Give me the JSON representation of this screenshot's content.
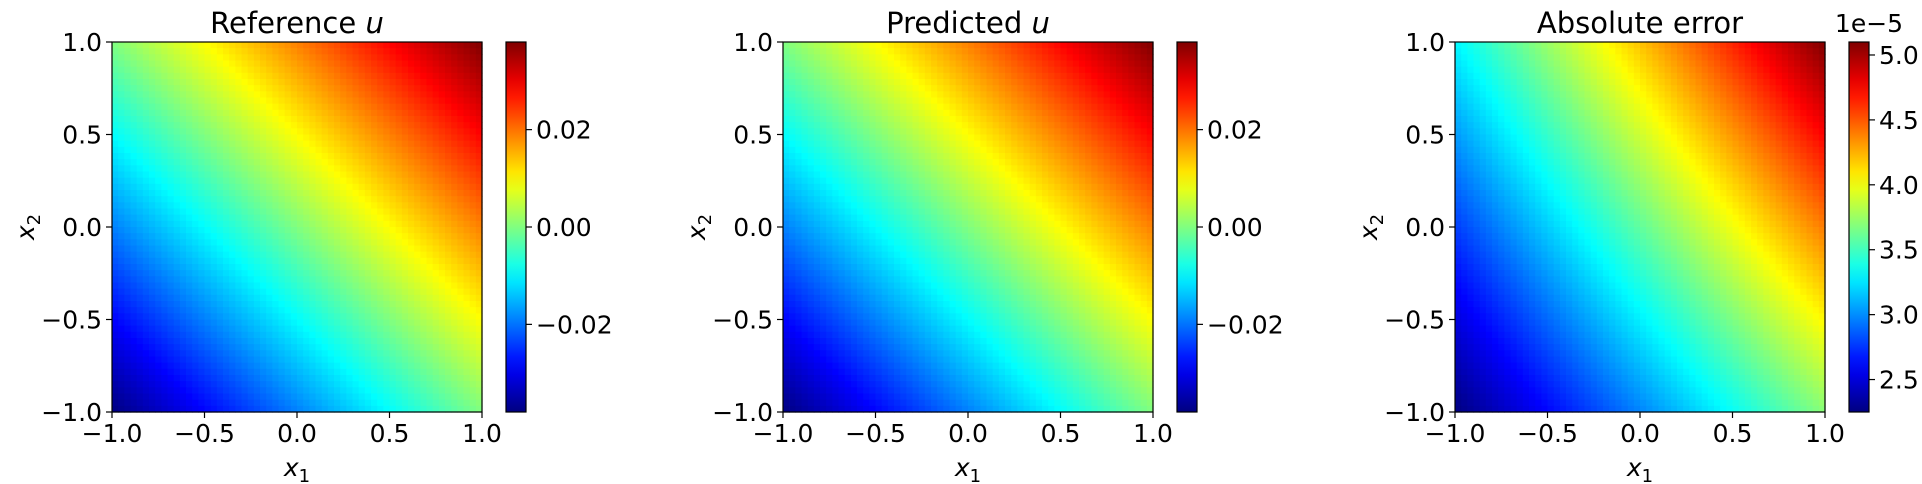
{
  "chart_data": [
    {
      "type": "heatmap",
      "title": "Reference u",
      "title_parts": {
        "text": "Reference ",
        "math": "u"
      },
      "xlabel": {
        "base": "x",
        "sub": "1"
      },
      "ylabel": {
        "base": "x",
        "sub": "2"
      },
      "xlim": [
        -1.0,
        1.0
      ],
      "ylim": [
        -1.0,
        1.0
      ],
      "xticks": [
        -1.0,
        -0.5,
        0.0,
        0.5,
        1.0
      ],
      "yticks": [
        -1.0,
        -0.5,
        0.0,
        0.5,
        1.0
      ],
      "xtick_labels": [
        "−1.0",
        "−0.5",
        "0.0",
        "0.5",
        "1.0"
      ],
      "ytick_labels": [
        "−1.0",
        "−0.5",
        "0.0",
        "0.5",
        "1.0"
      ],
      "colormap": "jet",
      "z_corners": {
        "bottom_left": -0.038,
        "bottom_right": 0.0,
        "top_left": 0.0,
        "top_right": 0.038
      },
      "colorbar": {
        "range": [
          -0.038,
          0.038
        ],
        "ticks": [
          -0.02,
          0.0,
          0.02
        ],
        "tick_labels": [
          "−0.02",
          "0.00",
          "0.02"
        ],
        "offset_label": ""
      }
    },
    {
      "type": "heatmap",
      "title": "Predicted u",
      "title_parts": {
        "text": "Predicted ",
        "math": "u"
      },
      "xlabel": {
        "base": "x",
        "sub": "1"
      },
      "ylabel": {
        "base": "x",
        "sub": "2"
      },
      "xlim": [
        -1.0,
        1.0
      ],
      "ylim": [
        -1.0,
        1.0
      ],
      "xticks": [
        -1.0,
        -0.5,
        0.0,
        0.5,
        1.0
      ],
      "yticks": [
        -1.0,
        -0.5,
        0.0,
        0.5,
        1.0
      ],
      "xtick_labels": [
        "−1.0",
        "−0.5",
        "0.0",
        "0.5",
        "1.0"
      ],
      "ytick_labels": [
        "−1.0",
        "−0.5",
        "0.0",
        "0.5",
        "1.0"
      ],
      "colormap": "jet",
      "z_corners": {
        "bottom_left": -0.038,
        "bottom_right": 0.0,
        "top_left": 0.0,
        "top_right": 0.038
      },
      "colorbar": {
        "range": [
          -0.038,
          0.038
        ],
        "ticks": [
          -0.02,
          0.0,
          0.02
        ],
        "tick_labels": [
          "−0.02",
          "0.00",
          "0.02"
        ],
        "offset_label": ""
      }
    },
    {
      "type": "heatmap",
      "title": "Absolute error",
      "title_parts": {
        "text": "Absolute error",
        "math": ""
      },
      "xlabel": {
        "base": "x",
        "sub": "1"
      },
      "ylabel": {
        "base": "x",
        "sub": "2"
      },
      "xlim": [
        -1.0,
        1.0
      ],
      "ylim": [
        -1.0,
        1.0
      ],
      "xticks": [
        -1.0,
        -0.5,
        0.0,
        0.5,
        1.0
      ],
      "yticks": [
        -1.0,
        -0.5,
        0.0,
        0.5,
        1.0
      ],
      "xtick_labels": [
        "−1.0",
        "−0.5",
        "0.0",
        "0.5",
        "1.0"
      ],
      "ytick_labels": [
        "−1.0",
        "−0.5",
        "0.0",
        "0.5",
        "1.0"
      ],
      "colormap": "jet",
      "z_corners": {
        "bottom_left": 2.25,
        "bottom_right": 3.7,
        "top_left": 3.3,
        "top_right": 5.1
      },
      "colorbar": {
        "range": [
          2.25,
          5.1
        ],
        "ticks": [
          2.5,
          3.0,
          3.5,
          4.0,
          4.5,
          5.0
        ],
        "tick_labels": [
          "2.5",
          "3.0",
          "3.5",
          "4.0",
          "4.5",
          "5.0"
        ],
        "offset_label": "1e−5"
      }
    }
  ]
}
